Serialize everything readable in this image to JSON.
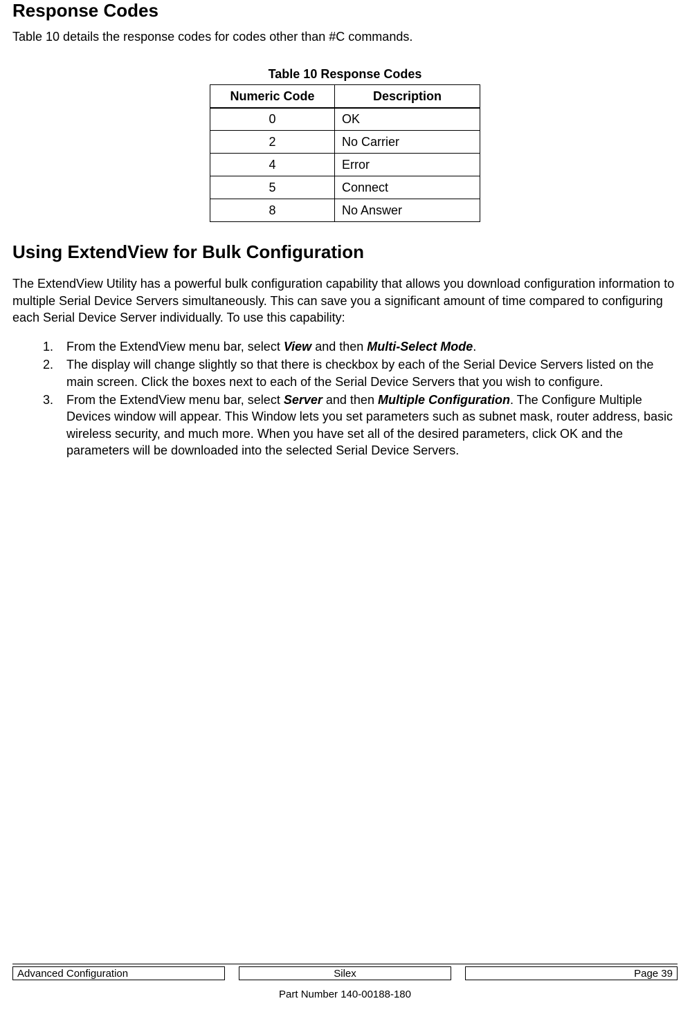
{
  "heading1": "Response Codes",
  "intro1": "Table 10 details the response codes for codes other than #C commands.",
  "table": {
    "caption": "Table 10  Response Codes",
    "headers": {
      "code": "Numeric Code",
      "desc": "Description"
    },
    "rows": [
      {
        "code": "0",
        "desc": "OK"
      },
      {
        "code": "2",
        "desc": "No Carrier"
      },
      {
        "code": "4",
        "desc": "Error"
      },
      {
        "code": "5",
        "desc": "Connect"
      },
      {
        "code": "8",
        "desc": "No Answer"
      }
    ]
  },
  "heading2": "Using ExtendView for Bulk Configuration",
  "intro2": "The ExtendView Utility has a powerful bulk configuration capability that allows you download configuration information to multiple Serial Device Servers simultaneously.  This can save you a significant amount of time compared to configuring each Serial Device Server individually.  To use this capability:",
  "steps": {
    "s1_a": "From the ExtendView menu bar, select ",
    "s1_view": "View",
    "s1_b": " and then ",
    "s1_msm": "Multi-Select Mode",
    "s1_c": ".",
    "s2": "The display will change slightly so that there is checkbox by each of the Serial Device Servers listed on the main screen.  Click the boxes next to each of the Serial Device Servers that you wish to configure.",
    "s3_a": "From the ExtendView menu bar, select ",
    "s3_server": "Server",
    "s3_b": " and then ",
    "s3_mc": "Multiple Configuration",
    "s3_c": ".  The Configure Multiple Devices window will appear.  This Window lets you set parameters such as subnet mask, router address, basic wireless security, and much more.  When you have set all of the desired parameters, click OK and the parameters will be downloaded into the selected Serial Device Servers."
  },
  "footer": {
    "left": "Advanced Configuration",
    "center": "Silex",
    "right": "Page 39",
    "part": "Part Number 140-00188-180"
  }
}
